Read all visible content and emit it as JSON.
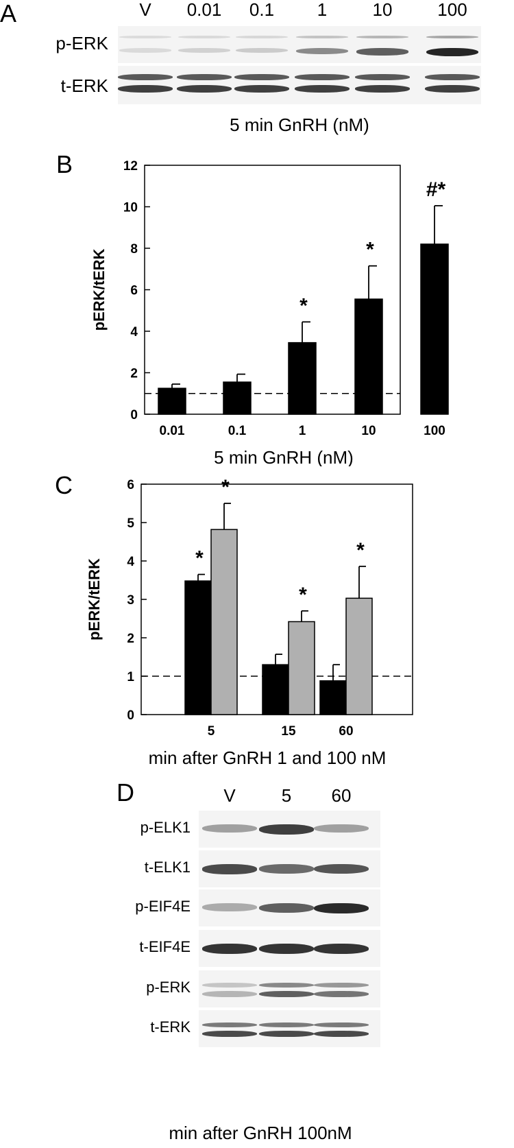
{
  "panelA": {
    "letter": "A",
    "lanes": [
      "V",
      "0.01",
      "0.1",
      "1",
      "10",
      "100"
    ],
    "rows": [
      "p-ERK",
      "t-ERK"
    ],
    "caption": "5 min GnRH (nM)",
    "pERK_intensity": [
      0.08,
      0.12,
      0.15,
      0.45,
      0.65,
      0.92
    ],
    "tERK_intensity": [
      0.8,
      0.8,
      0.8,
      0.8,
      0.8,
      0.8
    ]
  },
  "panelD": {
    "letter": "D",
    "lanes": [
      "V",
      "5",
      "60"
    ],
    "rows": [
      "p-ELK1",
      "t-ELK1",
      "p-EIF4E",
      "t-EIF4E",
      "p-ERK",
      "t-ERK"
    ],
    "caption": "min after GnRH 100nM",
    "intensity": {
      "p-ELK1": [
        0.35,
        0.8,
        0.35
      ],
      "t-ELK1": [
        0.75,
        0.6,
        0.7
      ],
      "p-EIF4E": [
        0.3,
        0.65,
        0.9
      ],
      "t-EIF4E": [
        0.85,
        0.85,
        0.85
      ],
      "p-ERK": [
        0.25,
        0.65,
        0.55
      ],
      "t-ERK": [
        0.75,
        0.75,
        0.75
      ]
    }
  },
  "chart_data": [
    {
      "panel": "B",
      "type": "bar",
      "categories": [
        "0.01",
        "0.1",
        "1",
        "10",
        "100"
      ],
      "values": [
        1.25,
        1.55,
        3.45,
        5.55,
        8.2
      ],
      "errors": [
        0.2,
        0.38,
        1.0,
        1.6,
        1.85
      ],
      "annotations": [
        "",
        "",
        "*",
        "*",
        "#*"
      ],
      "ylabel": "pERK/tERK",
      "xlabel": "5 min  GnRH (nM)",
      "ylim": [
        0,
        12
      ],
      "yticks": [
        0,
        2,
        4,
        6,
        8,
        10,
        12
      ],
      "reference_line": 1,
      "bar_color": "#000000"
    },
    {
      "panel": "C",
      "type": "bar",
      "categories": [
        "5",
        "15",
        "60"
      ],
      "series": [
        {
          "values": [
            3.48,
            1.3,
            0.88
          ],
          "errors": [
            0.17,
            0.27,
            0.42
          ],
          "annotations": [
            "*",
            "",
            ""
          ],
          "color": "#000000"
        },
        {
          "values": [
            4.82,
            2.42,
            3.03
          ],
          "errors": [
            0.68,
            0.28,
            0.83
          ],
          "annotations": [
            "*",
            "*",
            "*"
          ],
          "color": "#b0b0b0"
        }
      ],
      "ylabel": "pERK/tERK",
      "xlabel": "min after GnRH 1 and 100 nM",
      "ylim": [
        0,
        6
      ],
      "yticks": [
        0,
        1,
        2,
        3,
        4,
        5,
        6
      ],
      "reference_line": 1
    }
  ]
}
